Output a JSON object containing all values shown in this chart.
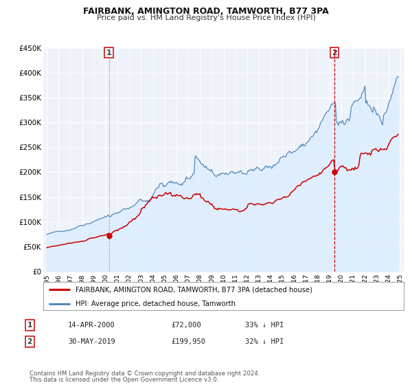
{
  "title": "FAIRBANK, AMINGTON ROAD, TAMWORTH, B77 3PA",
  "subtitle": "Price paid vs. HM Land Registry's House Price Index (HPI)",
  "legend_line1": "FAIRBANK, AMINGTON ROAD, TAMWORTH, B77 3PA (detached house)",
  "legend_line2": "HPI: Average price, detached house, Tamworth",
  "annotation1": {
    "label": "1",
    "date_str": "14-APR-2000",
    "price": "£72,000",
    "hpi_pct": "33% ↓ HPI",
    "x_year": 2000.28,
    "y_val": 72000
  },
  "annotation2": {
    "label": "2",
    "date_str": "30-MAY-2019",
    "price": "£199,950",
    "hpi_pct": "32% ↓ HPI",
    "x_year": 2019.41,
    "y_val": 199950
  },
  "vline1_x": 2000.28,
  "vline2_x": 2019.41,
  "footer1": "Contains HM Land Registry data © Crown copyright and database right 2024.",
  "footer2": "This data is licensed under the Open Government Licence v3.0.",
  "red_color": "#cc0000",
  "blue_color": "#5588bb",
  "fill_color": "#ddeeff",
  "plot_bg": "#eef3fa",
  "ylim": [
    0,
    450000
  ],
  "xlim_start": 1994.7,
  "xlim_end": 2025.3,
  "yticks": [
    0,
    50000,
    100000,
    150000,
    200000,
    250000,
    300000,
    350000,
    400000,
    450000
  ],
  "ytick_labels": [
    "£0",
    "£50K",
    "£100K",
    "£150K",
    "£200K",
    "£250K",
    "£300K",
    "£350K",
    "£400K",
    "£450K"
  ],
  "xticks": [
    1995,
    1996,
    1997,
    1998,
    1999,
    2000,
    2001,
    2002,
    2003,
    2004,
    2005,
    2006,
    2007,
    2008,
    2009,
    2010,
    2011,
    2012,
    2013,
    2014,
    2015,
    2016,
    2017,
    2018,
    2019,
    2020,
    2021,
    2022,
    2023,
    2024,
    2025
  ]
}
